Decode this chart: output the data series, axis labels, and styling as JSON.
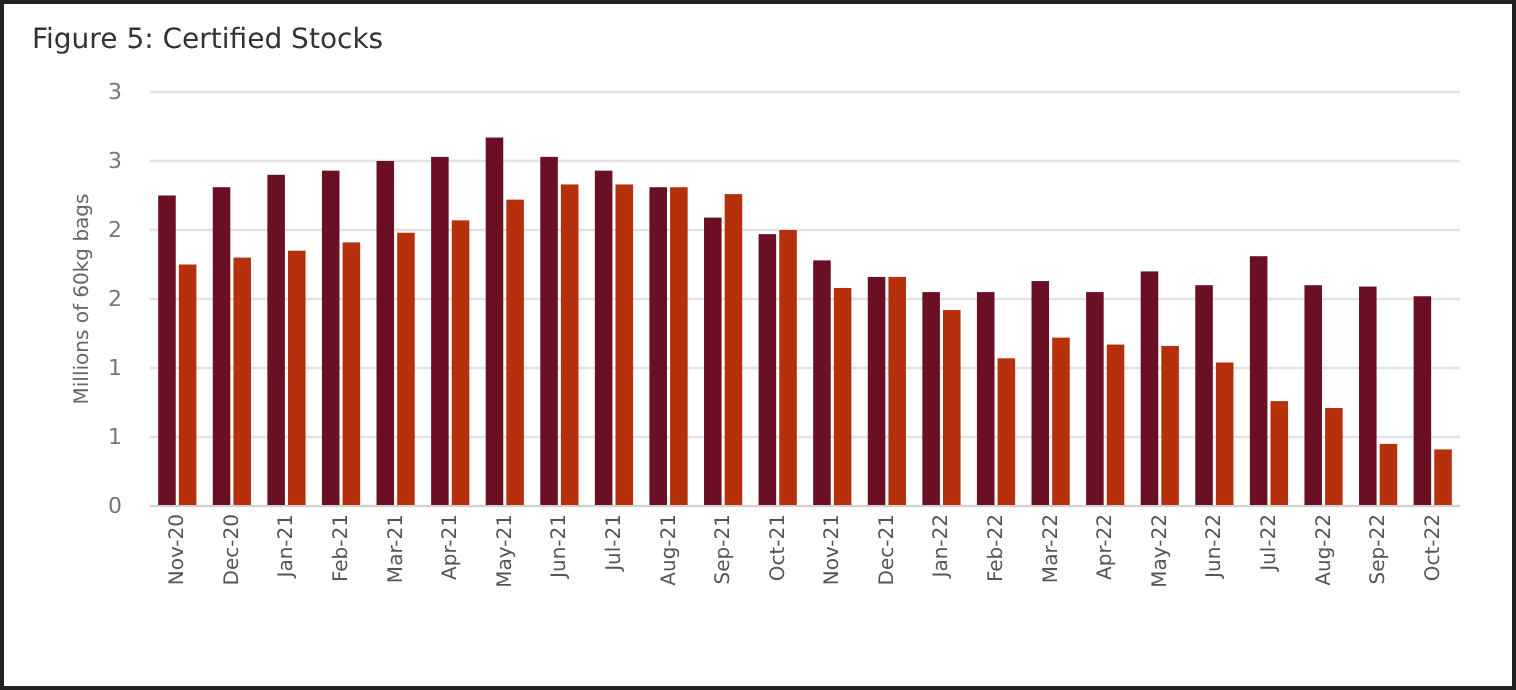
{
  "chart_data": {
    "type": "bar",
    "title": "Figure 5: Certified Stocks",
    "ylabel": "Millions of 60kg bags",
    "categories": [
      "Nov-20",
      "Dec-20",
      "Jan-21",
      "Feb-21",
      "Mar-21",
      "Apr-21",
      "May-21",
      "Jun-21",
      "Jul-21",
      "Aug-21",
      "Sep-21",
      "Oct-21",
      "Nov-21",
      "Dec-21",
      "Jan-22",
      "Feb-22",
      "Mar-22",
      "Apr-22",
      "May-22",
      "Jun-22",
      "Jul-22",
      "Aug-22",
      "Sep-22",
      "Oct-22"
    ],
    "series": [
      {
        "color": "#6b0f24",
        "values": [
          2.25,
          2.31,
          2.4,
          2.43,
          2.5,
          2.53,
          2.67,
          2.53,
          2.43,
          2.31,
          2.09,
          1.97,
          1.78,
          1.66,
          1.55,
          1.55,
          1.63,
          1.55,
          1.7,
          1.6,
          1.81,
          1.6,
          1.59,
          1.52
        ]
      },
      {
        "color": "#b5300b",
        "values": [
          1.75,
          1.8,
          1.85,
          1.91,
          1.98,
          2.07,
          2.22,
          2.33,
          2.33,
          2.31,
          2.26,
          2.0,
          1.58,
          1.66,
          1.42,
          1.07,
          1.22,
          1.17,
          1.16,
          1.04,
          0.76,
          0.71,
          0.45,
          0.41
        ]
      }
    ],
    "ylim": [
      0,
      3
    ],
    "yticks": [
      0,
      {
        "value": 0.5,
        "label": "1"
      },
      {
        "value": 1,
        "label": "1"
      },
      {
        "value": 1.5,
        "label": "2"
      },
      {
        "value": 2,
        "label": "2"
      },
      {
        "value": 2.5,
        "label": "3"
      },
      {
        "value": 3,
        "label": "3"
      }
    ],
    "grid": "y"
  }
}
